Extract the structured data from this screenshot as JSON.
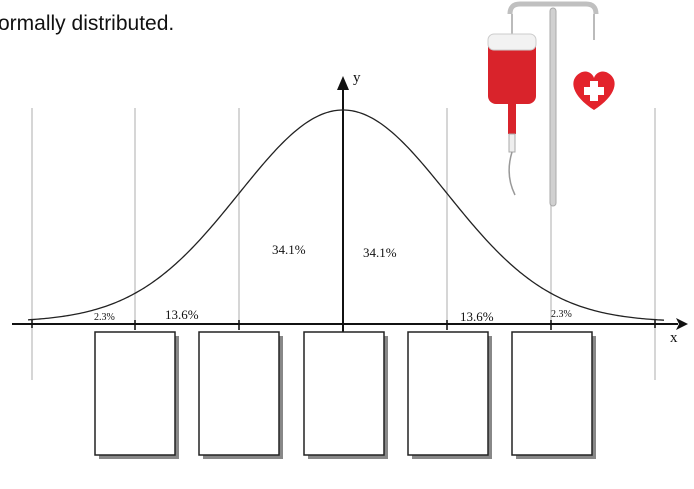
{
  "header": {
    "text": "ormally distributed."
  },
  "axes": {
    "x_label": "x",
    "y_label": "y"
  },
  "regions": [
    {
      "label": "2.3%"
    },
    {
      "label": "13.6%"
    },
    {
      "label": "34.1%"
    },
    {
      "label": "34.1%"
    },
    {
      "label": "13.6%"
    },
    {
      "label": "2.3%"
    }
  ]
}
